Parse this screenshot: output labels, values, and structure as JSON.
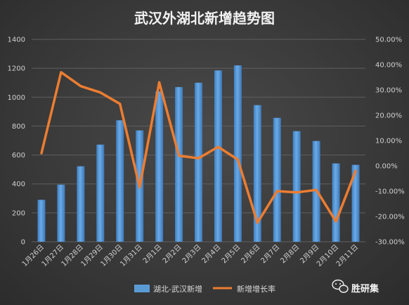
{
  "chart_data": {
    "type": "bar",
    "title": "武汉外湖北新增趋势图",
    "categories": [
      "1月26日",
      "1月27日",
      "1月28日",
      "1月29日",
      "1月30日",
      "1月31日",
      "2月1日",
      "2月2日",
      "2月3日",
      "2月4日",
      "2月5日",
      "2月6日",
      "2月7日",
      "2月8日",
      "2月9日",
      "2月10日",
      "2月11日"
    ],
    "series": [
      {
        "name": "湖北-武汉新增",
        "type": "bar",
        "axis": "left",
        "color": "#5b9bd5",
        "values": [
          290,
          395,
          522,
          672,
          840,
          770,
          1040,
          1070,
          1100,
          1185,
          1220,
          945,
          857,
          765,
          697,
          542,
          532
        ]
      },
      {
        "name": "新增增长率",
        "type": "line",
        "axis": "right",
        "color": "#ed7d31",
        "values": [
          5.0,
          37.0,
          31.5,
          29.0,
          24.5,
          -8.5,
          33.0,
          4.0,
          3.0,
          7.5,
          2.5,
          -22.5,
          -10.0,
          -10.5,
          -9.5,
          -22.0,
          -2.0
        ]
      }
    ],
    "y_left": {
      "min": 0,
      "max": 1400,
      "ticks": [
        "0",
        "200",
        "400",
        "600",
        "800",
        "1000",
        "1200",
        "1400"
      ]
    },
    "y_right": {
      "min": -30,
      "max": 50,
      "ticks": [
        "-30.00%",
        "-20.00%",
        "-10.00%",
        "0.00%",
        "10.00%",
        "20.00%",
        "30.00%",
        "40.00%",
        "50.00%"
      ]
    },
    "grid": true,
    "legend": "bottom"
  },
  "watermark": {
    "text": "胜研集",
    "icon": "wechat-icon"
  }
}
